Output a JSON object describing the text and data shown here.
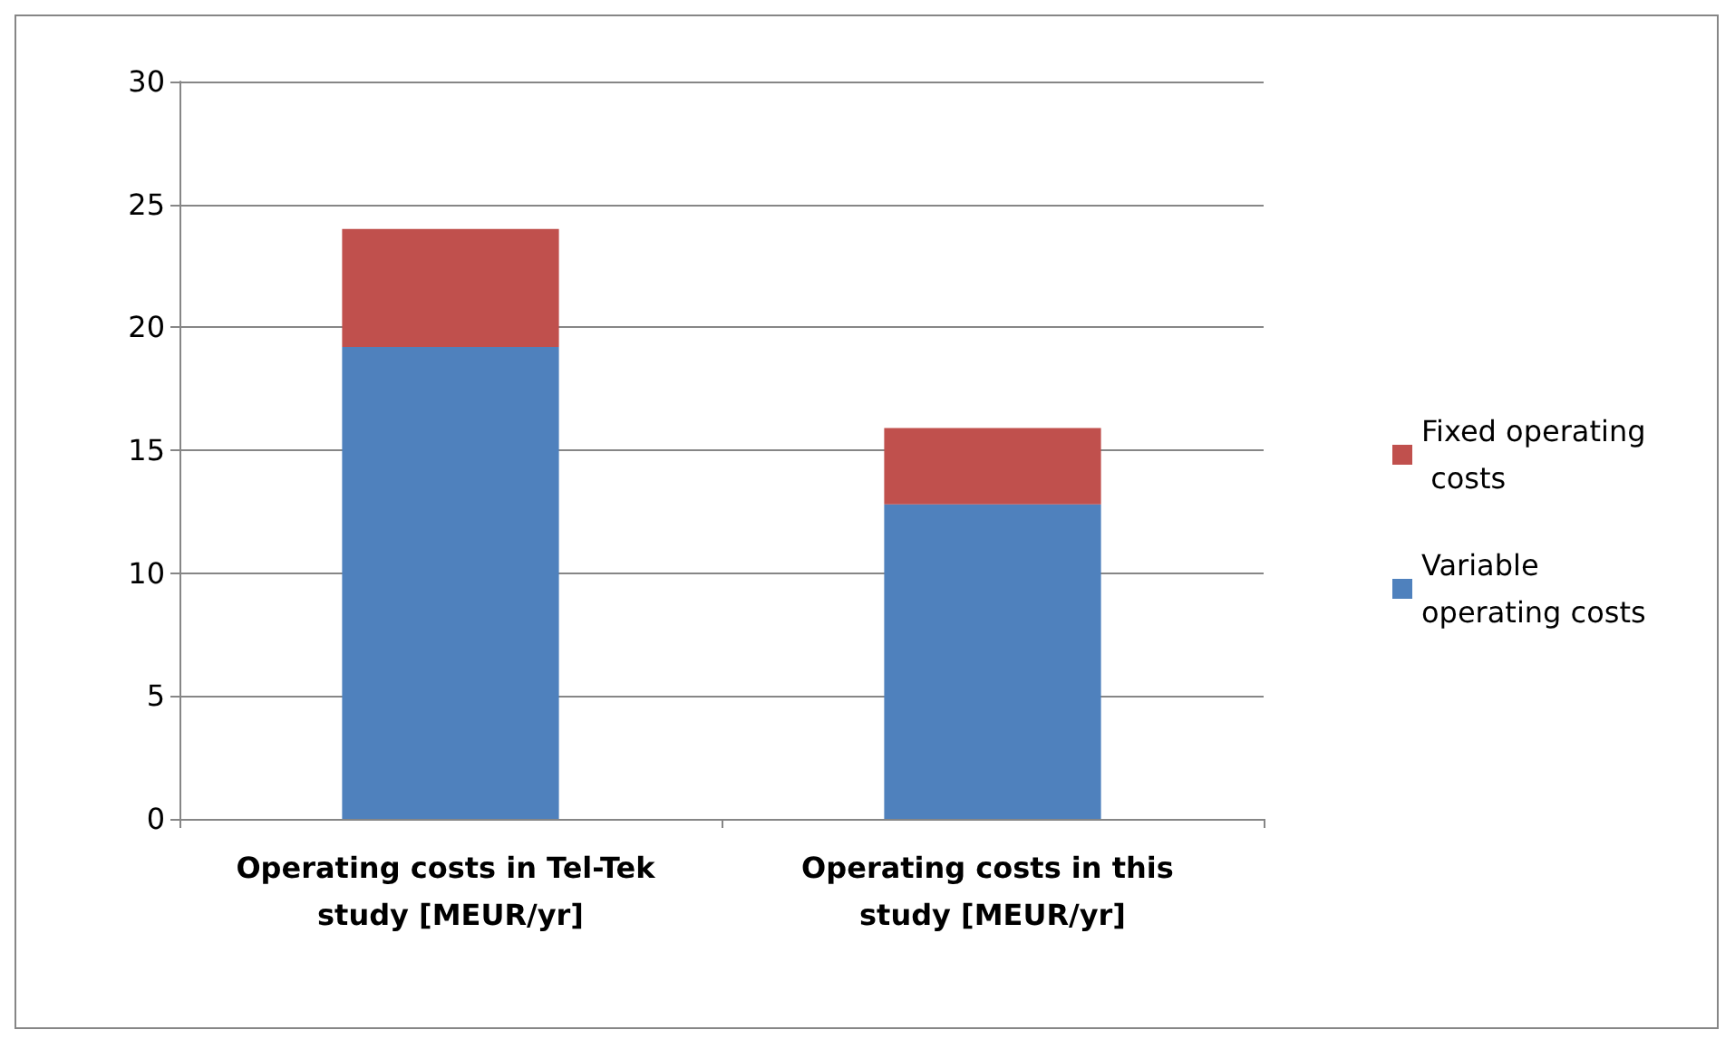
{
  "chart_data": {
    "type": "bar",
    "stacked": true,
    "categories": [
      "Operating costs in Tel-Tek study [MEUR/yr]",
      "Operating costs in this study [MEUR/yr]"
    ],
    "series": [
      {
        "name": "Variable operating costs",
        "color": "#4f81bd",
        "values": [
          19.2,
          12.8
        ]
      },
      {
        "name": "Fixed operating costs",
        "color": "#c0504d",
        "values": [
          4.8,
          3.1
        ]
      }
    ],
    "ylim": [
      0,
      30
    ],
    "yticks": [
      0,
      5,
      10,
      15,
      20,
      25,
      30
    ],
    "grid": "y",
    "legend": "right"
  }
}
